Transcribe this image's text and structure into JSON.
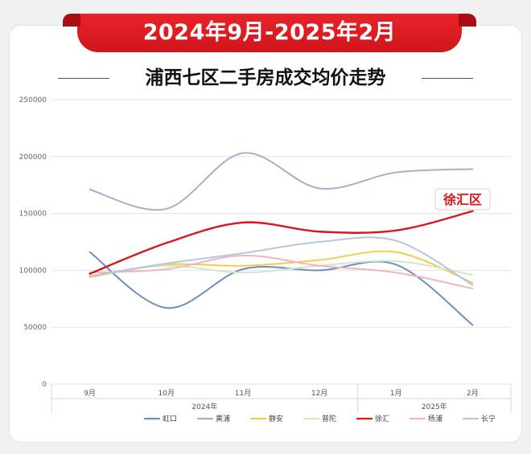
{
  "banner": {
    "title": "2024年9月-2025年2月"
  },
  "subtitle": "浦西七区二手房成交均价走势",
  "callout": "徐汇区",
  "chart_data": {
    "type": "line",
    "categories": [
      "9月",
      "10月",
      "11月",
      "12月",
      "1月",
      "2月"
    ],
    "year_groups": [
      {
        "label": "2024年",
        "from": 0,
        "to": 3
      },
      {
        "label": "2025年",
        "from": 4,
        "to": 5
      }
    ],
    "ylim": [
      0,
      250000
    ],
    "yticks": [
      "0",
      "50000",
      "100000",
      "150000",
      "200000",
      "250000"
    ],
    "legend_position": "bottom",
    "grid": true,
    "series": [
      {
        "name": "虹口",
        "color": "#6b8ec6",
        "values": [
          116000,
          67000,
          101000,
          100000,
          105000,
          52000
        ]
      },
      {
        "name": "黄浦",
        "color": "#a4b1c7",
        "values": [
          171000,
          154000,
          203000,
          172000,
          186000,
          189000
        ]
      },
      {
        "name": "静安",
        "color": "#f2cc4a",
        "values": [
          94000,
          105000,
          104000,
          109000,
          116000,
          89000
        ]
      },
      {
        "name": "普陀",
        "color": "#d3e8c2",
        "values": [
          95000,
          104000,
          98000,
          104000,
          108000,
          96000
        ]
      },
      {
        "name": "徐汇",
        "color": "#d8161b",
        "values": [
          97000,
          124000,
          142000,
          134000,
          135000,
          152000
        ],
        "width": 2.4
      },
      {
        "name": "杨浦",
        "color": "#f2b4bf",
        "values": [
          98000,
          101000,
          113000,
          104000,
          98000,
          84000
        ]
      },
      {
        "name": "长宁",
        "color": "#b4c6e1",
        "values": [
          95000,
          106000,
          115000,
          125000,
          126000,
          87000
        ]
      }
    ]
  }
}
